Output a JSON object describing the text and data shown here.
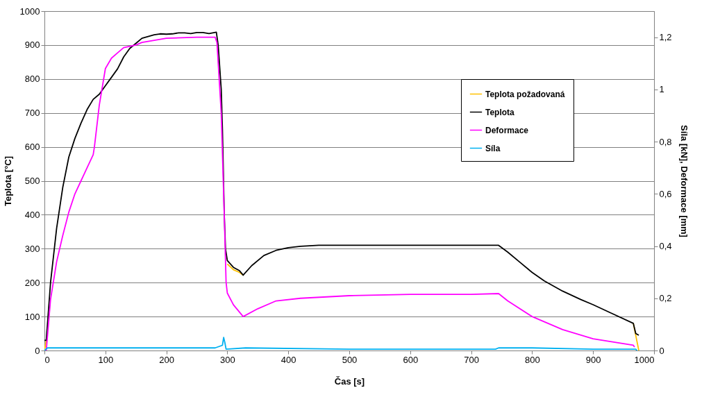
{
  "chart_data": {
    "type": "line",
    "xlabel": "Čas [s]",
    "ylabel": "Teplota [°C]",
    "y2label": "Síla [kN],  Deformace  [mm]",
    "xlim": [
      0,
      1000
    ],
    "xticks": [
      0,
      100,
      200,
      300,
      400,
      500,
      600,
      700,
      800,
      900,
      1000
    ],
    "ylim": [
      0,
      1000
    ],
    "yticks": [
      0,
      100,
      200,
      300,
      400,
      500,
      600,
      700,
      800,
      900,
      1000
    ],
    "y2lim": [
      0,
      1.3
    ],
    "y2ticks": [
      0,
      {
        "value": 0.2,
        "label": "0,2"
      },
      {
        "value": 0.4,
        "label": "0,4"
      },
      {
        "value": 0.6,
        "label": "0,6"
      },
      {
        "value": 0.8,
        "label": "0,8"
      },
      1,
      {
        "value": 1.2,
        "label": "1,2"
      }
    ],
    "grid": "y",
    "legend": "top right",
    "marker": "none",
    "line_style": "solid",
    "series": [
      {
        "name": "Teplota požadovaná",
        "color": "#ffc000",
        "x": [
          0,
          3,
          10,
          20,
          30,
          40,
          50,
          60,
          70,
          80,
          90,
          100,
          110,
          120,
          130,
          140,
          150,
          160,
          170,
          180,
          190,
          200,
          210,
          220,
          230,
          240,
          250,
          260,
          270,
          282,
          285,
          290,
          292,
          295,
          297,
          300,
          310,
          320,
          326,
          340,
          360,
          380,
          400,
          420,
          450,
          500,
          600,
          700,
          745,
          760,
          780,
          800,
          820,
          850,
          880,
          900,
          930,
          966,
          975
        ],
        "values": [
          0,
          30,
          null,
          null,
          null,
          null,
          null,
          null,
          null,
          null,
          null,
          null,
          null,
          null,
          null,
          null,
          null,
          null,
          null,
          null,
          null,
          null,
          null,
          null,
          null,
          null,
          null,
          null,
          null,
          null,
          null,
          null,
          null,
          null,
          null,
          255,
          238,
          230,
          222,
          null,
          null,
          null,
          null,
          null,
          null,
          null,
          null,
          null,
          null,
          null,
          null,
          null,
          null,
          null,
          null,
          null,
          null,
          80,
          0
        ]
      },
      {
        "name": "Teplota",
        "color": "#000000",
        "x": [
          0,
          3,
          10,
          20,
          30,
          40,
          50,
          60,
          70,
          80,
          90,
          100,
          110,
          120,
          130,
          140,
          150,
          160,
          170,
          180,
          190,
          200,
          210,
          220,
          230,
          240,
          250,
          260,
          270,
          282,
          285,
          290,
          292,
          295,
          297,
          300,
          310,
          320,
          326,
          340,
          360,
          380,
          400,
          420,
          450,
          500,
          600,
          700,
          745,
          760,
          780,
          800,
          820,
          850,
          880,
          900,
          930,
          966,
          970,
          975
        ],
        "values": [
          30,
          30,
          200,
          360,
          480,
          570,
          625,
          670,
          710,
          740,
          755,
          780,
          805,
          830,
          865,
          890,
          905,
          920,
          925,
          930,
          933,
          932,
          933,
          936,
          936,
          934,
          937,
          937,
          934,
          938,
          900,
          770,
          650,
          400,
          300,
          265,
          245,
          235,
          222,
          250,
          280,
          295,
          303,
          307,
          310,
          310,
          310,
          310,
          310,
          290,
          260,
          230,
          205,
          175,
          150,
          135,
          110,
          80,
          50,
          45
        ]
      },
      {
        "name": "Deformace",
        "color": "#ff00ff",
        "axis": "y2",
        "x": [
          3,
          10,
          20,
          30,
          40,
          50,
          60,
          70,
          80,
          82,
          90,
          100,
          110,
          120,
          130,
          150,
          160,
          200,
          250,
          280,
          283,
          290,
          295,
          298,
          300,
          310,
          326,
          350,
          380,
          420,
          500,
          600,
          700,
          745,
          760,
          800,
          850,
          900,
          966,
          968
        ],
        "values": [
          0,
          0.195,
          0.34,
          0.44,
          0.53,
          0.6,
          0.65,
          0.7,
          0.75,
          0.78,
          0.94,
          1.08,
          1.12,
          1.14,
          1.16,
          1.17,
          1.18,
          1.196,
          1.2,
          1.2,
          1.18,
          0.91,
          0.52,
          0.26,
          0.22,
          0.175,
          0.13,
          0.16,
          0.19,
          0.2,
          0.21,
          0.215,
          0.215,
          0.218,
          0.19,
          0.13,
          0.08,
          0.045,
          0.02,
          0.013
        ]
      },
      {
        "name": "Síla",
        "color": "#00b0f0",
        "axis": "y2",
        "x": [
          0,
          5,
          100,
          200,
          280,
          292,
          294,
          296,
          298,
          330,
          500,
          740,
          745,
          800,
          900,
          970,
          972
        ],
        "values": [
          0,
          0.01,
          0.01,
          0.01,
          0.01,
          0.02,
          0.05,
          0.03,
          0.005,
          0.01,
          0.005,
          0.005,
          0.01,
          0.01,
          0.005,
          0.005,
          0
        ]
      }
    ]
  }
}
